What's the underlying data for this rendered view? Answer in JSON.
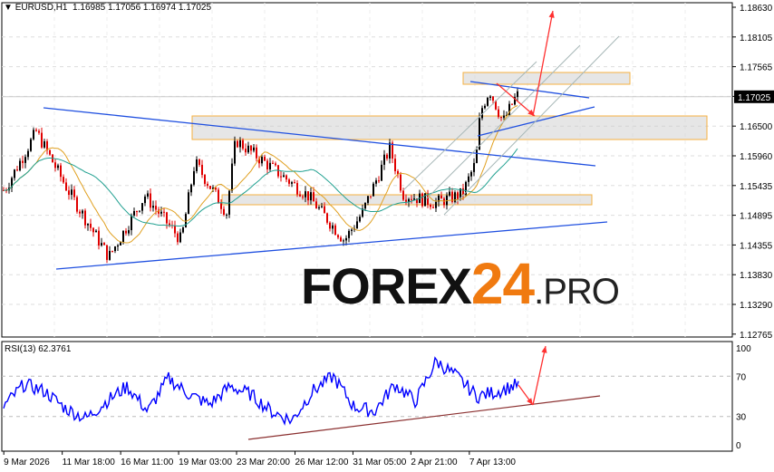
{
  "header": {
    "symbol": "EURUSD,H1",
    "open": "1.16985",
    "high": "1.17056",
    "low": "1.16974",
    "close": "1.17025"
  },
  "rsi": {
    "label": "RSI(13) 62.3761",
    "levels": [
      "100",
      "70",
      "30",
      "0"
    ]
  },
  "logo": {
    "main": "FOREX",
    "num": "24",
    "suffix": ".PRO"
  },
  "colors": {
    "bull": "#000000",
    "bear": "#e00000",
    "rsi": "#0000ff",
    "ma_fast": "#e0a020",
    "ma_slow": "#20a090",
    "trend": "#2050e0",
    "arrow": "#ff3030",
    "zone": "#f5b040"
  },
  "chart_data": {
    "type": "candlestick",
    "y_ticks": [
      "1.18630",
      "1.18105",
      "1.17565",
      "1.17025",
      "1.16500",
      "1.15960",
      "1.15435",
      "1.14895",
      "1.14355",
      "1.13830",
      "1.13290",
      "1.12765"
    ],
    "ylim": [
      1.12765,
      1.1863
    ],
    "current_price": "1.17025",
    "x_ticks": [
      "9 Mar 2026",
      "11 Mar 18:00",
      "16 Mar 11:00",
      "19 Mar 03:00",
      "23 Mar 20:00",
      "26 Mar 12:00",
      "31 Mar 05:00",
      "2 Apr 21:00",
      "7 Apr 13:00"
    ],
    "price_path": [
      1.1535,
      1.164,
      1.1535,
      1.1415,
      1.1525,
      1.1445,
      1.1585,
      1.1495,
      1.1625,
      1.1575,
      1.1525,
      1.1445,
      1.1495,
      1.161,
      1.1528,
      1.1512,
      1.1528,
      1.1585,
      1.1675,
      1.1715,
      1.1657,
      1.1705
    ],
    "rsi_path": [
      40,
      62,
      55,
      38,
      28,
      45,
      60,
      35,
      68,
      52,
      42,
      60,
      52,
      35,
      26,
      55,
      70,
      40,
      35,
      62,
      45,
      85,
      70,
      50,
      55,
      62
    ],
    "rsi_ylim": [
      0,
      100
    ]
  }
}
